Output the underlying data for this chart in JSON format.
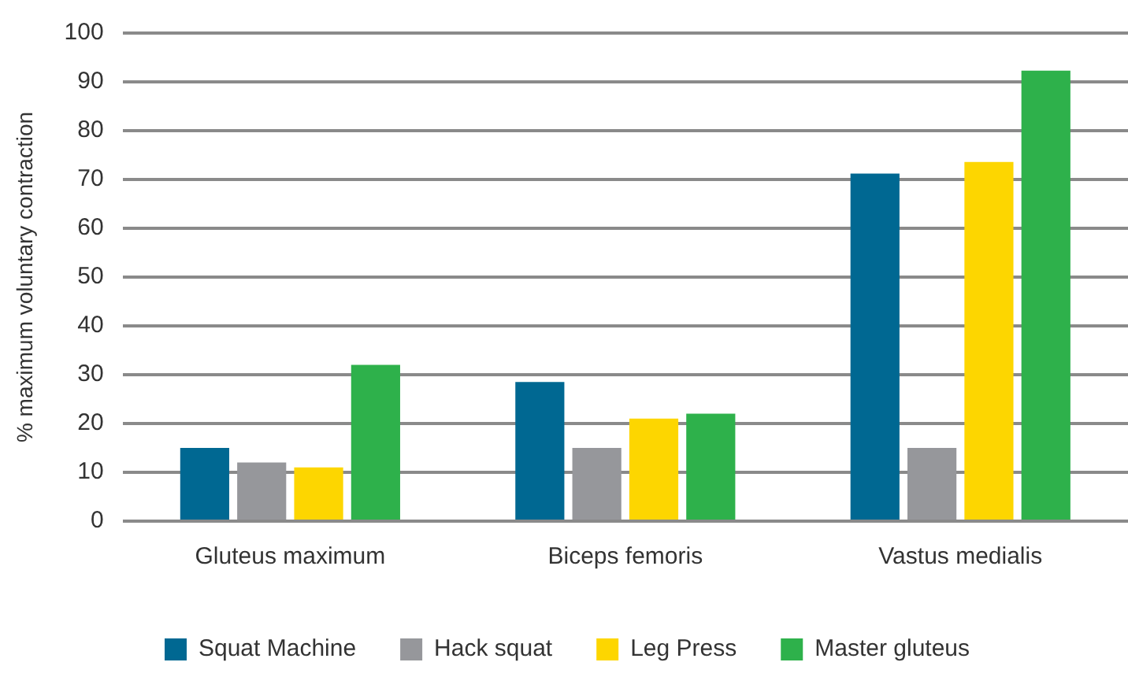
{
  "chart_data": {
    "type": "bar",
    "ylabel": "% maximum voluntary contraction",
    "categories": [
      "Gluteus maximum",
      "Biceps femoris",
      "Vastus medialis"
    ],
    "series": [
      {
        "name": "Squat Machine",
        "color": "#006892",
        "values": [
          15,
          28.5,
          71.2
        ]
      },
      {
        "name": "Hack squat",
        "color": "#96979b",
        "values": [
          12,
          15,
          15
        ]
      },
      {
        "name": "Leg Press",
        "color": "#fdd600",
        "values": [
          11,
          21,
          73.6
        ]
      },
      {
        "name": "Master gluteus",
        "color": "#2eb14b",
        "values": [
          32,
          22,
          92.3
        ]
      }
    ],
    "ylim": [
      0,
      100
    ],
    "yticks": [
      0,
      10,
      20,
      30,
      40,
      50,
      60,
      70,
      80,
      90,
      100
    ],
    "grid": "y",
    "legend": "bottom"
  }
}
